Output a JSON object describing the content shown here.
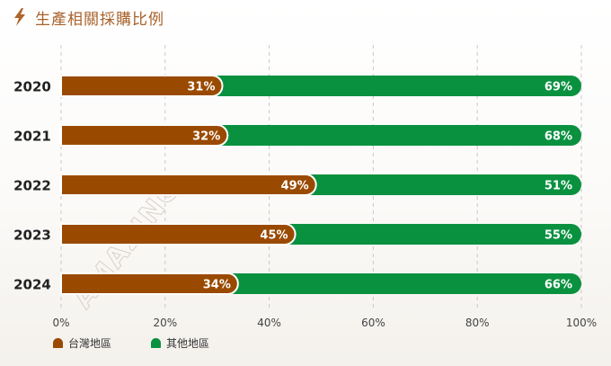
{
  "header": {
    "title": "生產相關採購比例",
    "icon": "lightning-bolt-icon"
  },
  "colors": {
    "accent": "#a9622b",
    "taiwan": "#9a4a00",
    "other": "#0a9140"
  },
  "chart_data": {
    "type": "bar",
    "orientation": "horizontal",
    "stacked": true,
    "categories": [
      "2020",
      "2021",
      "2022",
      "2023",
      "2024"
    ],
    "series": [
      {
        "name": "台灣地區",
        "values": [
          31,
          32,
          49,
          45,
          34
        ],
        "color": "#9a4a00"
      },
      {
        "name": "其他地區",
        "values": [
          69,
          68,
          51,
          55,
          66
        ],
        "color": "#0a9140"
      }
    ],
    "value_suffix": "%",
    "xlim": [
      0,
      100
    ],
    "xticks": [
      "0%",
      "20%",
      "40%",
      "60%",
      "80%",
      "100%"
    ],
    "grid": "vertical-dashed",
    "legend_position": "bottom-left",
    "watermark": "AMAZING"
  }
}
